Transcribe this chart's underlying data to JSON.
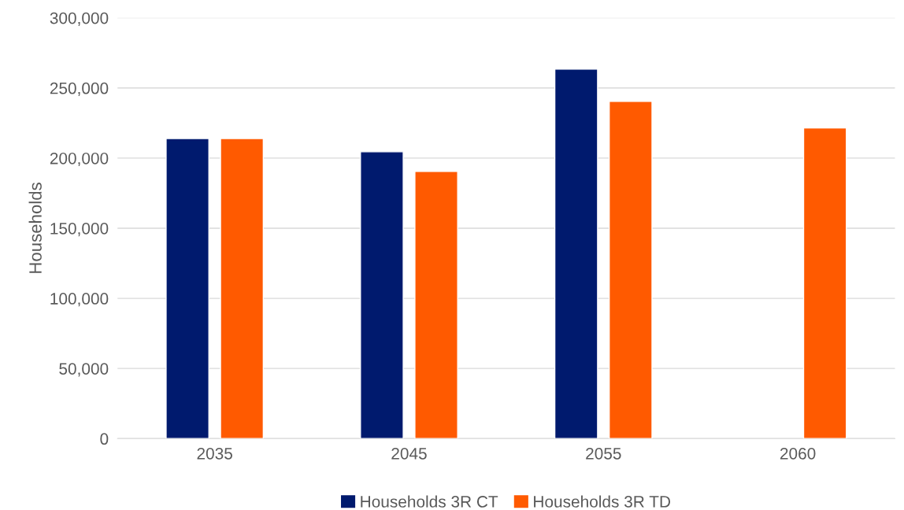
{
  "chart_data": {
    "type": "bar",
    "ylabel": "Households",
    "categories": [
      "2035",
      "2045",
      "2055",
      "2060"
    ],
    "series": [
      {
        "name": "Households 3R CT",
        "color": "#001a6e",
        "values": [
          214000,
          204500,
          263500,
          null
        ]
      },
      {
        "name": "Households 3R TD",
        "color": "#ff5a00",
        "values": [
          214000,
          190500,
          240500,
          221500
        ]
      }
    ],
    "ylim": [
      0,
      300000
    ],
    "yticks": [
      {
        "value": 0,
        "label": "0"
      },
      {
        "value": 50000,
        "label": "50,000"
      },
      {
        "value": 100000,
        "label": "100,000"
      },
      {
        "value": 150000,
        "label": "150,000"
      },
      {
        "value": 200000,
        "label": "200,000"
      },
      {
        "value": 250000,
        "label": "250,000"
      },
      {
        "value": 300000,
        "label": "300,000"
      }
    ],
    "grid": "y",
    "legend": "bottom"
  }
}
